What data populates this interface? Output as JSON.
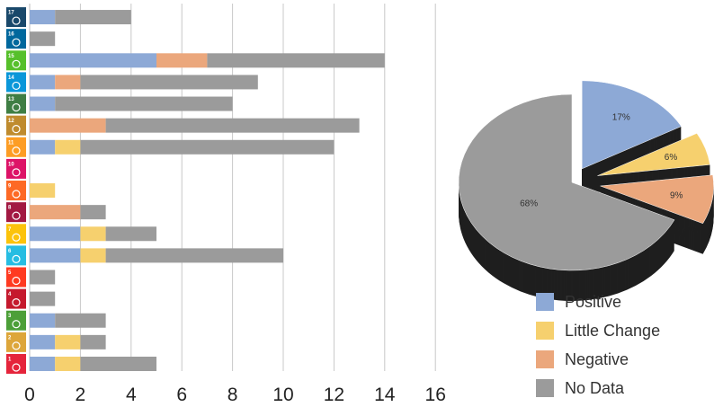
{
  "chart_data": [
    {
      "type": "bar",
      "orientation": "horizontal",
      "stacked": true,
      "categories": [
        "17",
        "16",
        "15",
        "14",
        "13",
        "12",
        "11",
        "10",
        "9",
        "8",
        "7",
        "6",
        "5",
        "4",
        "3",
        "2",
        "1"
      ],
      "category_icons": [
        "sdg-17-icon",
        "sdg-16-icon",
        "sdg-15-icon",
        "sdg-14-icon",
        "sdg-13-icon",
        "sdg-12-icon",
        "sdg-11-icon",
        "sdg-10-icon",
        "sdg-9-icon",
        "sdg-8-icon",
        "sdg-7-icon",
        "sdg-6-icon",
        "sdg-5-icon",
        "sdg-4-icon",
        "sdg-3-icon",
        "sdg-2-icon",
        "sdg-1-icon"
      ],
      "category_colors": [
        "#19486A",
        "#00689D",
        "#56C02B",
        "#0A97D9",
        "#3F7E44",
        "#BF8B2E",
        "#FD9D24",
        "#DD1367",
        "#FD6925",
        "#A21942",
        "#FCC30B",
        "#26BDE2",
        "#FF3A21",
        "#C5192D",
        "#4C9F38",
        "#DDA63A",
        "#E5243B"
      ],
      "series": [
        {
          "key": "positive",
          "values": [
            1,
            0,
            5,
            1,
            1,
            0,
            1,
            0,
            0,
            0,
            2,
            2,
            0,
            0,
            1,
            1,
            1
          ]
        },
        {
          "key": "little_change",
          "values": [
            0,
            0,
            0,
            0,
            0,
            0,
            1,
            0,
            1,
            0,
            1,
            1,
            0,
            0,
            0,
            1,
            1
          ]
        },
        {
          "key": "negative",
          "values": [
            0,
            0,
            2,
            1,
            0,
            3,
            0,
            0,
            0,
            2,
            0,
            0,
            0,
            0,
            0,
            0,
            0
          ]
        },
        {
          "key": "no_data",
          "values": [
            3,
            1,
            7,
            7,
            7,
            10,
            10,
            0,
            0,
            1,
            2,
            7,
            1,
            1,
            2,
            1,
            3
          ]
        }
      ],
      "xlim": [
        0,
        16
      ],
      "xticks": [
        "0",
        "2",
        "4",
        "6",
        "8",
        "10",
        "12",
        "14",
        "16"
      ],
      "grid": "vertical"
    },
    {
      "type": "pie",
      "style": "3d-exploded",
      "slices": [
        {
          "key": "positive",
          "label": "17%",
          "value": 17
        },
        {
          "key": "little_change",
          "label": "6%",
          "value": 6
        },
        {
          "key": "negative",
          "label": "9%",
          "value": 9
        },
        {
          "key": "no_data",
          "label": "68%",
          "value": 68
        }
      ]
    }
  ],
  "legend": {
    "placement": "bottom-right",
    "items": [
      {
        "key": "positive",
        "label": "Positive",
        "color": "#8DA9D6"
      },
      {
        "key": "little_change",
        "label": "Little Change",
        "color": "#F6D06E"
      },
      {
        "key": "negative",
        "label": "Negative",
        "color": "#EBA77C"
      },
      {
        "key": "no_data",
        "label": "No Data",
        "color": "#9B9B9B"
      }
    ]
  },
  "colors": {
    "positive": "#8DA9D6",
    "little_change": "#F6D06E",
    "negative": "#EBA77C",
    "no_data": "#9B9B9B",
    "shadow": "#1f1f1f",
    "grid": "#c8c8c8",
    "axis_text": "#222222"
  }
}
